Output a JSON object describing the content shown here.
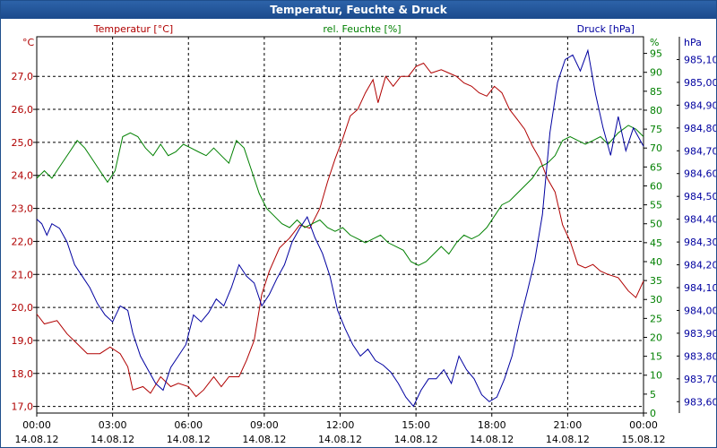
{
  "window": {
    "title": "Temperatur, Feuchte & Druck"
  },
  "chart_data": {
    "type": "line",
    "title": "Temperatur, Feuchte & Druck",
    "x_ticks": [
      {
        "h": 0,
        "time": "00:00",
        "date": "14.08.12"
      },
      {
        "h": 3,
        "time": "03:00",
        "date": "14.08.12"
      },
      {
        "h": 6,
        "time": "06:00",
        "date": "14.08.12"
      },
      {
        "h": 9,
        "time": "09:00",
        "date": "14.08.12"
      },
      {
        "h": 12,
        "time": "12:00",
        "date": "14.08.12"
      },
      {
        "h": 15,
        "time": "15:00",
        "date": "14.08.12"
      },
      {
        "h": 18,
        "time": "18:00",
        "date": "14.08.12"
      },
      {
        "h": 21,
        "time": "21:00",
        "date": "14.08.12"
      },
      {
        "h": 24,
        "time": "00:00",
        "date": "15.08.12"
      }
    ],
    "xlim": [
      0,
      24
    ],
    "axes": {
      "temperature": {
        "label": "Temperatur [°C]",
        "unit": "°C",
        "min": 16.8,
        "max": 28.2,
        "ticks": [
          "17,0",
          "18,0",
          "19,0",
          "20,0",
          "21,0",
          "22,0",
          "23,0",
          "24,0",
          "25,0",
          "26,0",
          "27,0"
        ],
        "tick_values": [
          17,
          18,
          19,
          20,
          21,
          22,
          23,
          24,
          25,
          26,
          27
        ],
        "color": "#b00000"
      },
      "humidity": {
        "label": "rel. Feuchte [%]",
        "unit": "%",
        "min": 0,
        "max": 99.4,
        "ticks": [
          "0",
          "5",
          "10",
          "15",
          "20",
          "25",
          "30",
          "35",
          "40",
          "45",
          "50",
          "55",
          "60",
          "65",
          "70",
          "75",
          "80",
          "85",
          "90",
          "95"
        ],
        "tick_values": [
          0,
          5,
          10,
          15,
          20,
          25,
          30,
          35,
          40,
          45,
          50,
          55,
          60,
          65,
          70,
          75,
          80,
          85,
          90,
          95
        ],
        "color": "#008000"
      },
      "pressure": {
        "label": "Druck [hPa]",
        "unit": "hPa",
        "min": 983.55,
        "max": 985.2,
        "ticks": [
          "983,60",
          "983,70",
          "983,80",
          "983,90",
          "984,00",
          "984,10",
          "984,20",
          "984,30",
          "984,40",
          "984,50",
          "984,60",
          "984,70",
          "984,80",
          "984,90",
          "985,00",
          "985,10"
        ],
        "tick_values": [
          983.6,
          983.7,
          983.8,
          983.9,
          984.0,
          984.1,
          984.2,
          984.3,
          984.4,
          984.5,
          984.6,
          984.7,
          984.8,
          984.9,
          985.0,
          985.1
        ],
        "color": "#0000a0"
      }
    },
    "grid": true,
    "series": [
      {
        "name": "Temperatur [°C]",
        "axis": "temperature",
        "color": "#b00000",
        "points": [
          [
            0,
            19.8
          ],
          [
            0.3,
            19.5
          ],
          [
            0.8,
            19.6
          ],
          [
            1.2,
            19.2
          ],
          [
            1.6,
            18.9
          ],
          [
            2.0,
            18.6
          ],
          [
            2.5,
            18.6
          ],
          [
            2.9,
            18.8
          ],
          [
            3.3,
            18.6
          ],
          [
            3.6,
            18.2
          ],
          [
            3.8,
            17.5
          ],
          [
            4.2,
            17.6
          ],
          [
            4.5,
            17.4
          ],
          [
            4.9,
            17.9
          ],
          [
            5.3,
            17.6
          ],
          [
            5.6,
            17.7
          ],
          [
            6.0,
            17.6
          ],
          [
            6.3,
            17.3
          ],
          [
            6.6,
            17.5
          ],
          [
            7.0,
            17.9
          ],
          [
            7.3,
            17.6
          ],
          [
            7.6,
            17.9
          ],
          [
            8.0,
            17.9
          ],
          [
            8.3,
            18.4
          ],
          [
            8.6,
            19.0
          ],
          [
            8.9,
            20.4
          ],
          [
            9.2,
            21.1
          ],
          [
            9.6,
            21.8
          ],
          [
            10.0,
            22.1
          ],
          [
            10.4,
            22.5
          ],
          [
            10.8,
            22.4
          ],
          [
            11.2,
            23.0
          ],
          [
            11.5,
            23.8
          ],
          [
            11.8,
            24.5
          ],
          [
            12.1,
            25.1
          ],
          [
            12.4,
            25.8
          ],
          [
            12.7,
            26.0
          ],
          [
            13.0,
            26.5
          ],
          [
            13.3,
            26.9
          ],
          [
            13.5,
            26.2
          ],
          [
            13.8,
            27.0
          ],
          [
            14.1,
            26.7
          ],
          [
            14.4,
            27.0
          ],
          [
            14.7,
            27.0
          ],
          [
            15.0,
            27.3
          ],
          [
            15.3,
            27.4
          ],
          [
            15.6,
            27.1
          ],
          [
            16.0,
            27.2
          ],
          [
            16.3,
            27.1
          ],
          [
            16.6,
            27.0
          ],
          [
            16.9,
            26.8
          ],
          [
            17.2,
            26.7
          ],
          [
            17.5,
            26.5
          ],
          [
            17.8,
            26.4
          ],
          [
            18.1,
            26.7
          ],
          [
            18.4,
            26.5
          ],
          [
            18.7,
            26.0
          ],
          [
            19.0,
            25.7
          ],
          [
            19.3,
            25.4
          ],
          [
            19.6,
            24.9
          ],
          [
            19.9,
            24.5
          ],
          [
            20.2,
            23.9
          ],
          [
            20.5,
            23.5
          ],
          [
            20.8,
            22.5
          ],
          [
            21.1,
            22.0
          ],
          [
            21.4,
            21.3
          ],
          [
            21.7,
            21.2
          ],
          [
            22.0,
            21.3
          ],
          [
            22.3,
            21.1
          ],
          [
            22.6,
            21.0
          ],
          [
            23.0,
            20.9
          ],
          [
            23.4,
            20.5
          ],
          [
            23.7,
            20.3
          ],
          [
            24.0,
            20.8
          ]
        ]
      },
      {
        "name": "rel. Feuchte [%]",
        "axis": "humidity",
        "color": "#008000",
        "points": [
          [
            0,
            62
          ],
          [
            0.3,
            64
          ],
          [
            0.6,
            62
          ],
          [
            1.0,
            66
          ],
          [
            1.3,
            69
          ],
          [
            1.6,
            72
          ],
          [
            1.9,
            70
          ],
          [
            2.2,
            67
          ],
          [
            2.5,
            64
          ],
          [
            2.8,
            61
          ],
          [
            3.1,
            64
          ],
          [
            3.4,
            73
          ],
          [
            3.7,
            74
          ],
          [
            4.0,
            73
          ],
          [
            4.3,
            70
          ],
          [
            4.6,
            68
          ],
          [
            4.9,
            71
          ],
          [
            5.2,
            68
          ],
          [
            5.5,
            69
          ],
          [
            5.8,
            71
          ],
          [
            6.1,
            70
          ],
          [
            6.4,
            69
          ],
          [
            6.7,
            68
          ],
          [
            7.0,
            70
          ],
          [
            7.3,
            68
          ],
          [
            7.6,
            66
          ],
          [
            7.9,
            72
          ],
          [
            8.2,
            70
          ],
          [
            8.5,
            64
          ],
          [
            8.8,
            58
          ],
          [
            9.1,
            54
          ],
          [
            9.4,
            52
          ],
          [
            9.7,
            50
          ],
          [
            10.0,
            49
          ],
          [
            10.3,
            51
          ],
          [
            10.6,
            49
          ],
          [
            10.9,
            50
          ],
          [
            11.2,
            51
          ],
          [
            11.5,
            49
          ],
          [
            11.8,
            48
          ],
          [
            12.1,
            49
          ],
          [
            12.4,
            47
          ],
          [
            12.7,
            46
          ],
          [
            13.0,
            45
          ],
          [
            13.3,
            46
          ],
          [
            13.6,
            47
          ],
          [
            13.9,
            45
          ],
          [
            14.2,
            44
          ],
          [
            14.5,
            43
          ],
          [
            14.8,
            40
          ],
          [
            15.1,
            39
          ],
          [
            15.4,
            40
          ],
          [
            15.7,
            42
          ],
          [
            16.0,
            44
          ],
          [
            16.3,
            42
          ],
          [
            16.6,
            45
          ],
          [
            16.9,
            47
          ],
          [
            17.2,
            46
          ],
          [
            17.5,
            47
          ],
          [
            17.8,
            49
          ],
          [
            18.1,
            52
          ],
          [
            18.4,
            55
          ],
          [
            18.7,
            56
          ],
          [
            19.0,
            58
          ],
          [
            19.3,
            60
          ],
          [
            19.6,
            62
          ],
          [
            19.9,
            65
          ],
          [
            20.2,
            66
          ],
          [
            20.5,
            68
          ],
          [
            20.8,
            72
          ],
          [
            21.1,
            73
          ],
          [
            21.4,
            72
          ],
          [
            21.7,
            71
          ],
          [
            22.0,
            72
          ],
          [
            22.3,
            73
          ],
          [
            22.6,
            71
          ],
          [
            23.0,
            74
          ],
          [
            23.4,
            76
          ],
          [
            23.7,
            75
          ],
          [
            24.0,
            73
          ]
        ]
      },
      {
        "name": "Druck [hPa]",
        "axis": "pressure",
        "color": "#0000a0",
        "points": [
          [
            0,
            984.4
          ],
          [
            0.2,
            984.38
          ],
          [
            0.4,
            984.33
          ],
          [
            0.6,
            984.38
          ],
          [
            0.9,
            984.36
          ],
          [
            1.2,
            984.3
          ],
          [
            1.5,
            984.2
          ],
          [
            1.8,
            984.15
          ],
          [
            2.1,
            984.1
          ],
          [
            2.4,
            984.03
          ],
          [
            2.7,
            983.98
          ],
          [
            3.0,
            983.95
          ],
          [
            3.3,
            984.02
          ],
          [
            3.6,
            984.0
          ],
          [
            3.8,
            983.9
          ],
          [
            4.1,
            983.8
          ],
          [
            4.4,
            983.74
          ],
          [
            4.7,
            983.68
          ],
          [
            5.0,
            983.65
          ],
          [
            5.3,
            983.75
          ],
          [
            5.6,
            983.8
          ],
          [
            5.9,
            983.85
          ],
          [
            6.2,
            983.98
          ],
          [
            6.5,
            983.95
          ],
          [
            6.8,
            983.99
          ],
          [
            7.1,
            984.05
          ],
          [
            7.4,
            984.02
          ],
          [
            7.7,
            984.1
          ],
          [
            8.0,
            984.2
          ],
          [
            8.3,
            984.15
          ],
          [
            8.6,
            984.12
          ],
          [
            8.9,
            984.02
          ],
          [
            9.2,
            984.07
          ],
          [
            9.5,
            984.14
          ],
          [
            9.8,
            984.2
          ],
          [
            10.1,
            984.3
          ],
          [
            10.4,
            984.36
          ],
          [
            10.7,
            984.41
          ],
          [
            11.0,
            984.32
          ],
          [
            11.3,
            984.25
          ],
          [
            11.6,
            984.15
          ],
          [
            11.9,
            984.0
          ],
          [
            12.2,
            983.92
          ],
          [
            12.5,
            983.85
          ],
          [
            12.8,
            983.8
          ],
          [
            13.1,
            983.83
          ],
          [
            13.4,
            983.78
          ],
          [
            13.7,
            983.76
          ],
          [
            14.0,
            983.73
          ],
          [
            14.3,
            983.68
          ],
          [
            14.6,
            983.62
          ],
          [
            14.9,
            983.58
          ],
          [
            15.2,
            983.65
          ],
          [
            15.5,
            983.7
          ],
          [
            15.8,
            983.7
          ],
          [
            16.1,
            983.74
          ],
          [
            16.4,
            983.68
          ],
          [
            16.7,
            983.8
          ],
          [
            17.0,
            983.74
          ],
          [
            17.3,
            983.7
          ],
          [
            17.6,
            983.63
          ],
          [
            17.9,
            983.6
          ],
          [
            18.2,
            983.62
          ],
          [
            18.5,
            983.7
          ],
          [
            18.8,
            983.8
          ],
          [
            19.1,
            983.95
          ],
          [
            19.4,
            984.08
          ],
          [
            19.7,
            984.22
          ],
          [
            20.0,
            984.42
          ],
          [
            20.3,
            984.78
          ],
          [
            20.6,
            985.0
          ],
          [
            20.9,
            985.1
          ],
          [
            21.2,
            985.12
          ],
          [
            21.5,
            985.05
          ],
          [
            21.8,
            985.14
          ],
          [
            22.1,
            984.95
          ],
          [
            22.4,
            984.8
          ],
          [
            22.7,
            984.68
          ],
          [
            23.0,
            984.85
          ],
          [
            23.3,
            984.7
          ],
          [
            23.6,
            984.8
          ],
          [
            24.0,
            984.72
          ]
        ]
      }
    ]
  }
}
